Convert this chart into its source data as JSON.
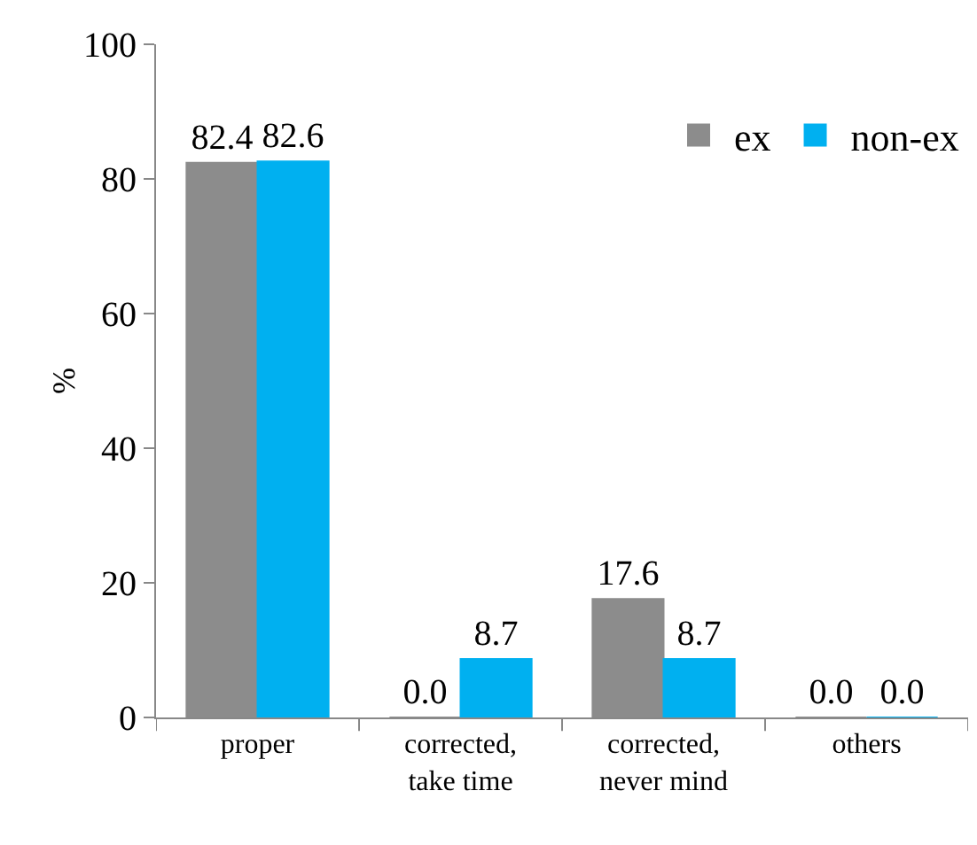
{
  "chart_data": {
    "type": "bar",
    "ylabel": "%",
    "categories": [
      "proper",
      "corrected,\ntake time",
      "corrected,\nnever mind",
      "others"
    ],
    "series": [
      {
        "name": "ex",
        "color": "#8c8c8c",
        "values": [
          82.4,
          0.0,
          17.6,
          0.0
        ],
        "value_labels": [
          "82.4",
          "0.0",
          "17.6",
          "0.0"
        ]
      },
      {
        "name": "non-ex",
        "color": "#00b0f0",
        "values": [
          82.6,
          8.7,
          8.7,
          0.0
        ],
        "value_labels": [
          "82.6",
          "8.7",
          "8.7",
          "0.0"
        ]
      }
    ],
    "ylim": [
      0,
      100
    ],
    "yticks": [
      0,
      20,
      40,
      60,
      80,
      100
    ],
    "grid": false,
    "legend": "top right"
  }
}
